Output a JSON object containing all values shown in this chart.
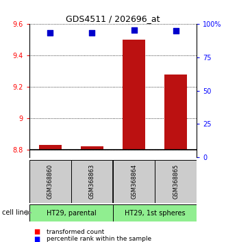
{
  "title": "GDS4511 / 202696_at",
  "samples": [
    "GSM368860",
    "GSM368863",
    "GSM368864",
    "GSM368865"
  ],
  "transformed_counts": [
    8.83,
    8.82,
    9.5,
    9.28
  ],
  "percentile_ranks": [
    93.5,
    93.5,
    95.5,
    95.0
  ],
  "bar_bottom": 8.8,
  "ylim_left": [
    8.75,
    9.6
  ],
  "ylim_right": [
    0,
    100
  ],
  "yticks_left": [
    8.8,
    9.0,
    9.2,
    9.4,
    9.6
  ],
  "yticks_right": [
    0,
    25,
    50,
    75,
    100
  ],
  "ytick_labels_left": [
    "8.8",
    "9",
    "9.2",
    "9.4",
    "9.6"
  ],
  "ytick_labels_right": [
    "0",
    "25",
    "50",
    "75",
    "100%"
  ],
  "cell_lines": [
    "HT29, parental",
    "HT29, 1st spheres"
  ],
  "bar_color": "#bb1111",
  "dot_color": "#0000cc",
  "sample_label_bg": "#cccccc",
  "bar_width": 0.55,
  "dot_size": 30
}
